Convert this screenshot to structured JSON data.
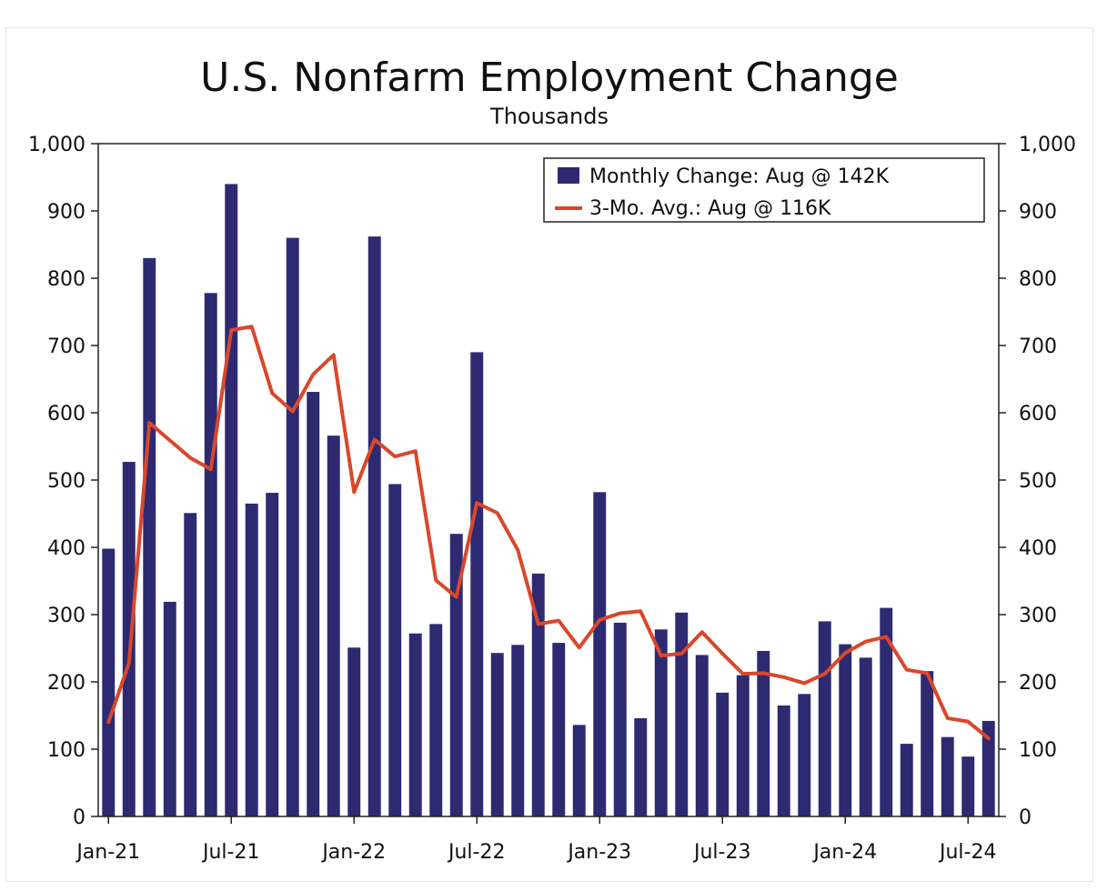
{
  "chart_data": {
    "type": "bar",
    "title": "U.S. Nonfarm Employment Change",
    "subtitle": "Thousands",
    "ylim": [
      0,
      1000
    ],
    "yticks": [
      0,
      100,
      200,
      300,
      400,
      500,
      600,
      700,
      800,
      900,
      1000
    ],
    "ytick_labels": [
      "0",
      "100",
      "200",
      "300",
      "400",
      "500",
      "600",
      "700",
      "800",
      "900",
      "1,000"
    ],
    "xtick_labels": [
      "Jan-21",
      "Jul-21",
      "Jan-22",
      "Jul-22",
      "Jan-23",
      "Jul-23",
      "Jan-24",
      "Jul-24"
    ],
    "categories": [
      "Jan-21",
      "Feb-21",
      "Mar-21",
      "Apr-21",
      "May-21",
      "Jun-21",
      "Jul-21",
      "Aug-21",
      "Sep-21",
      "Oct-21",
      "Nov-21",
      "Dec-21",
      "Jan-22",
      "Feb-22",
      "Mar-22",
      "Apr-22",
      "May-22",
      "Jun-22",
      "Jul-22",
      "Aug-22",
      "Sep-22",
      "Oct-22",
      "Nov-22",
      "Dec-22",
      "Jan-23",
      "Feb-23",
      "Mar-23",
      "Apr-23",
      "May-23",
      "Jun-23",
      "Jul-23",
      "Aug-23",
      "Sep-23",
      "Oct-23",
      "Nov-23",
      "Dec-23",
      "Jan-24",
      "Feb-24",
      "Mar-24",
      "Apr-24",
      "May-24",
      "Jun-24",
      "Jul-24",
      "Aug-24"
    ],
    "series": [
      {
        "name": "Monthly Change: Aug @ 142K",
        "kind": "bar",
        "color": "#2e2a72",
        "values": [
          398,
          527,
          830,
          319,
          451,
          778,
          940,
          465,
          481,
          860,
          631,
          566,
          251,
          862,
          494,
          272,
          286,
          420,
          690,
          243,
          255,
          361,
          258,
          136,
          482,
          288,
          146,
          278,
          303,
          240,
          184,
          210,
          246,
          165,
          182,
          290,
          256,
          236,
          310,
          108,
          216,
          118,
          89,
          142
        ]
      },
      {
        "name": "3-Mo. Avg.: Aug @ 116K",
        "kind": "line",
        "color": "#d9472b",
        "values": [
          140,
          228,
          585,
          559,
          533,
          516,
          723,
          728,
          629,
          602,
          657,
          686,
          482,
          560,
          535,
          543,
          351,
          326,
          466,
          451,
          396,
          286,
          291,
          251,
          292,
          302,
          305,
          239,
          242,
          274,
          242,
          212,
          213,
          207,
          198,
          212,
          243,
          260,
          267,
          218,
          213,
          146,
          141,
          116
        ]
      }
    ],
    "legend_position": "top-right",
    "grid": false
  }
}
